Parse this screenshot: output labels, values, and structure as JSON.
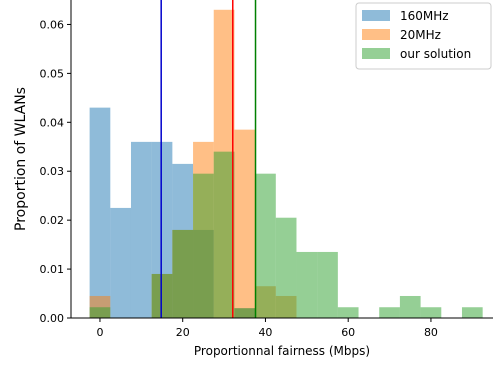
{
  "chart_data": {
    "type": "bar",
    "subtype": "overlapping-histogram",
    "xlabel": "Proportionnal fairness (Mbps)",
    "ylabel": "Proportion of WLANs",
    "xlim": [
      -7,
      95
    ],
    "ylim": [
      0,
      0.065
    ],
    "xticks": [
      0,
      20,
      40,
      60,
      80
    ],
    "xtick_labels": [
      "0",
      "20",
      "40",
      "60",
      "80"
    ],
    "yticks": [
      0,
      0.01,
      0.02,
      0.03,
      0.04,
      0.05,
      0.06
    ],
    "ytick_labels": [
      "0.00",
      "0.01",
      "0.02",
      "0.03",
      "0.04",
      "0.05",
      "0.06"
    ],
    "grid": false,
    "legend_position": "top-right",
    "alpha": 0.5,
    "series": [
      {
        "name": "160MHz",
        "color": "#1f77b4",
        "bin_width": 5,
        "bins": [
          {
            "x0": -2.5,
            "value": 0.043
          },
          {
            "x0": 2.5,
            "value": 0.0225
          },
          {
            "x0": 7.5,
            "value": 0.036
          },
          {
            "x0": 12.5,
            "value": 0.036
          },
          {
            "x0": 17.5,
            "value": 0.0315
          },
          {
            "x0": 22.5,
            "value": 0.018
          },
          {
            "x0": 27.5,
            "value": 0.0
          },
          {
            "x0": 32.5,
            "value": 0.002
          },
          {
            "x0": 37.5,
            "value": 0.0
          },
          {
            "x0": 42.5,
            "value": 0.0
          }
        ]
      },
      {
        "name": "20MHz",
        "color": "#ff7f0e",
        "bin_width": 5,
        "bins": [
          {
            "x0": -2.5,
            "value": 0.0045
          },
          {
            "x0": 12.5,
            "value": 0.009
          },
          {
            "x0": 17.5,
            "value": 0.018
          },
          {
            "x0": 22.5,
            "value": 0.036
          },
          {
            "x0": 27.5,
            "value": 0.063
          },
          {
            "x0": 32.5,
            "value": 0.0385
          },
          {
            "x0": 37.5,
            "value": 0.0065
          },
          {
            "x0": 42.5,
            "value": 0.0045
          },
          {
            "x0": 47.5,
            "value": 0.0
          }
        ]
      },
      {
        "name": "our solution",
        "color": "#2ca02c",
        "bin_width": 5,
        "bins": [
          {
            "x0": -2.5,
            "value": 0.0022
          },
          {
            "x0": 12.5,
            "value": 0.009
          },
          {
            "x0": 17.5,
            "value": 0.018
          },
          {
            "x0": 22.5,
            "value": 0.0295
          },
          {
            "x0": 27.5,
            "value": 0.034
          },
          {
            "x0": 32.5,
            "value": 0.002
          },
          {
            "x0": 37.5,
            "value": 0.0295
          },
          {
            "x0": 42.5,
            "value": 0.0205
          },
          {
            "x0": 47.5,
            "value": 0.0135
          },
          {
            "x0": 52.5,
            "value": 0.0135
          },
          {
            "x0": 57.5,
            "value": 0.0022
          },
          {
            "x0": 67.5,
            "value": 0.0022
          },
          {
            "x0": 72.5,
            "value": 0.0045
          },
          {
            "x0": 77.5,
            "value": 0.0022
          },
          {
            "x0": 87.5,
            "value": 0.0022
          }
        ]
      }
    ],
    "vlines": [
      {
        "x": 14.8,
        "color": "#0000cc"
      },
      {
        "x": 32.1,
        "color": "#ff0000"
      },
      {
        "x": 37.6,
        "color": "#008000"
      }
    ]
  }
}
